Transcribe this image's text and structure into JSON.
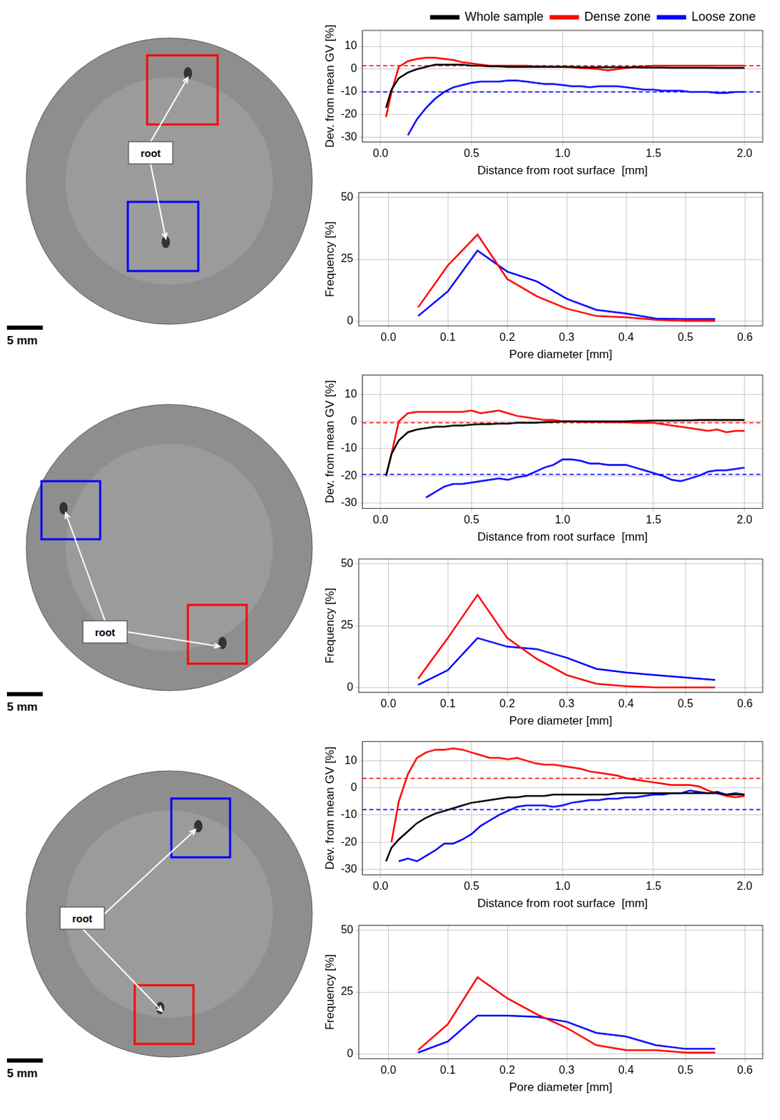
{
  "images": [
    {
      "label": "root",
      "scale_bar": "5 mm"
    },
    {
      "label": "root",
      "scale_bar": "5 mm"
    },
    {
      "label": "root",
      "scale_bar": "5 mm"
    }
  ],
  "chart_data": [
    {
      "type": "line",
      "xlabel": "Distance from root surface  [mm]",
      "ylabel": "Dev. from mean GV [%]",
      "xlim": [
        -0.1,
        2.1
      ],
      "ylim": [
        -32,
        17
      ],
      "xticks": [
        {
          "value": 0,
          "label": "0.0"
        },
        {
          "value": 0.5,
          "label": "0.5"
        },
        {
          "value": 1,
          "label": "1.0"
        },
        {
          "value": 1.5,
          "label": "1.5"
        },
        {
          "value": 2,
          "label": "2.0"
        }
      ],
      "yticks": [
        -30,
        -20,
        -10,
        0,
        10
      ],
      "grid": true,
      "legend": "top",
      "x": [
        0.03,
        0.06,
        0.1,
        0.15,
        0.2,
        0.25,
        0.3,
        0.35,
        0.4,
        0.45,
        0.5,
        0.55,
        0.6,
        0.65,
        0.7,
        0.75,
        0.8,
        0.85,
        0.9,
        0.95,
        1.0,
        1.05,
        1.1,
        1.15,
        1.2,
        1.25,
        1.3,
        1.35,
        1.4,
        1.45,
        1.5,
        1.55,
        1.6,
        1.65,
        1.7,
        1.75,
        1.8,
        1.85,
        1.9,
        1.95,
        2.0
      ],
      "series": [
        {
          "name": "Whole sample",
          "color": "#000000",
          "values": [
            -17,
            -9,
            -4,
            -1.5,
            0,
            1,
            2,
            2,
            2,
            2,
            1.5,
            1.5,
            1.2,
            1.2,
            1,
            1,
            1,
            1,
            1,
            1,
            1,
            1,
            0.8,
            0.8,
            0.8,
            0.8,
            0.8,
            0.8,
            0.8,
            0.7,
            0.7,
            0.7,
            0.6,
            0.6,
            0.6,
            0.6,
            0.6,
            0.5,
            0.5,
            0.5,
            0.5
          ]
        },
        {
          "name": "Dense zone",
          "color": "#ff0000",
          "values": [
            -21,
            -10,
            1,
            3.5,
            4.5,
            5,
            5,
            4.5,
            4,
            3,
            2.5,
            2,
            1.5,
            1.5,
            1.5,
            1.5,
            1.5,
            1.2,
            1.2,
            1,
            1,
            0.8,
            0.5,
            0.3,
            0,
            -0.5,
            0,
            0.5,
            1,
            1.2,
            1.5,
            1.5,
            1.5,
            1.5,
            1.5,
            1.5,
            1.5,
            1.5,
            1.5,
            1.5,
            1.5
          ]
        },
        {
          "name": "Loose zone",
          "color": "#0000ff",
          "values": [
            null,
            null,
            null,
            -29,
            -22,
            -17,
            -13,
            -10,
            -8,
            -7,
            -6,
            -5.5,
            -5.5,
            -5.5,
            -5,
            -5,
            -5.5,
            -6,
            -6.5,
            -6.5,
            -7,
            -7.5,
            -7.5,
            -8,
            -7.5,
            -7.5,
            -7.5,
            -8,
            -8.5,
            -9,
            -9,
            -9.5,
            -9.5,
            -9.5,
            -10,
            -10,
            -10,
            -10.5,
            -10.5,
            -10,
            -10
          ]
        }
      ],
      "reference_lines": [
        {
          "value": 1.5,
          "color": "#ff0000",
          "line_style": "dashed"
        },
        {
          "value": -10,
          "color": "#0000ff",
          "line_style": "dashed"
        }
      ]
    },
    {
      "type": "line",
      "xlabel": "Pore diameter [mm]",
      "ylabel": "Frequency [%]",
      "xlim": [
        -0.05,
        0.63
      ],
      "ylim": [
        -2,
        52
      ],
      "xticks": [
        {
          "value": 0,
          "label": "0.0"
        },
        {
          "value": 0.1,
          "label": "0.1"
        },
        {
          "value": 0.2,
          "label": "0.2"
        },
        {
          "value": 0.3,
          "label": "0.3"
        },
        {
          "value": 0.4,
          "label": "0.4"
        },
        {
          "value": 0.5,
          "label": "0.5"
        },
        {
          "value": 0.6,
          "label": "0.6"
        }
      ],
      "yticks": [
        0,
        25,
        50
      ],
      "grid": true,
      "x": [
        0.05,
        0.1,
        0.15,
        0.2,
        0.25,
        0.3,
        0.35,
        0.4,
        0.45,
        0.5,
        0.55
      ],
      "series": [
        {
          "name": "Dense zone",
          "color": "#ff0000",
          "values": [
            5.5,
            22.5,
            35,
            17,
            10,
            5,
            2,
            1.5,
            0.5,
            0,
            0
          ]
        },
        {
          "name": "Loose zone",
          "color": "#0000ff",
          "values": [
            2,
            12,
            28.5,
            20,
            16,
            9,
            4.5,
            3,
            1,
            0.8,
            0.8
          ]
        }
      ]
    },
    {
      "type": "line",
      "xlabel": "Distance from root surface  [mm]",
      "ylabel": "Dev. from mean GV [%]",
      "xlim": [
        -0.1,
        2.1
      ],
      "ylim": [
        -32,
        17
      ],
      "xticks": [
        {
          "value": 0,
          "label": "0.0"
        },
        {
          "value": 0.5,
          "label": "0.5"
        },
        {
          "value": 1,
          "label": "1.0"
        },
        {
          "value": 1.5,
          "label": "1.5"
        },
        {
          "value": 2,
          "label": "2.0"
        }
      ],
      "yticks": [
        -30,
        -20,
        -10,
        0,
        10
      ],
      "grid": true,
      "x": [
        0.03,
        0.06,
        0.1,
        0.15,
        0.2,
        0.25,
        0.3,
        0.35,
        0.4,
        0.45,
        0.5,
        0.55,
        0.6,
        0.65,
        0.7,
        0.75,
        0.8,
        0.85,
        0.9,
        0.95,
        1.0,
        1.05,
        1.1,
        1.15,
        1.2,
        1.25,
        1.3,
        1.35,
        1.4,
        1.45,
        1.5,
        1.55,
        1.6,
        1.65,
        1.7,
        1.75,
        1.8,
        1.85,
        1.9,
        1.95,
        2.0
      ],
      "series": [
        {
          "name": "Whole sample",
          "color": "#000000",
          "values": [
            -20,
            -12,
            -7,
            -4,
            -3,
            -2.5,
            -2,
            -2,
            -1.5,
            -1.5,
            -1.2,
            -1,
            -1,
            -0.8,
            -0.8,
            -0.5,
            -0.5,
            -0.5,
            -0.3,
            -0.2,
            0,
            0,
            0,
            0,
            0,
            0,
            0,
            0,
            0.2,
            0.2,
            0.3,
            0.3,
            0.3,
            0.4,
            0.4,
            0.5,
            0.5,
            0.5,
            0.5,
            0.5,
            0.5
          ]
        },
        {
          "name": "Dense zone",
          "color": "#ff0000",
          "values": [
            -20,
            -12,
            0,
            3,
            3.5,
            3.5,
            3.5,
            3.5,
            3.5,
            3.5,
            4,
            3,
            3.5,
            4,
            3,
            2,
            1.5,
            1,
            0.5,
            0.5,
            0,
            0,
            -0.2,
            -0.2,
            -0.2,
            -0.3,
            -0.3,
            -0.3,
            -0.5,
            -0.5,
            -0.5,
            -1,
            -1.5,
            -2,
            -2.5,
            -3,
            -3.5,
            -3,
            -4,
            -3.5,
            -3.5
          ]
        },
        {
          "name": "Loose zone",
          "color": "#0000ff",
          "values": [
            null,
            null,
            null,
            null,
            null,
            -28,
            -26,
            -24,
            -23,
            -23,
            -22.5,
            -22,
            -21.5,
            -21,
            -21.5,
            -20.5,
            -20,
            -18.5,
            -17,
            -16,
            -14,
            -14,
            -14.5,
            -15.5,
            -15.5,
            -16,
            -16,
            -16,
            -17,
            -18,
            -19,
            -20,
            -21.5,
            -22,
            -21,
            -20,
            -18.5,
            -18,
            -18,
            -17.5,
            -17
          ]
        }
      ],
      "reference_lines": [
        {
          "value": -0.5,
          "color": "#ff0000",
          "line_style": "dashed"
        },
        {
          "value": -19.5,
          "color": "#0000ff",
          "line_style": "dashed"
        }
      ]
    },
    {
      "type": "line",
      "xlabel": "Pore diameter [mm]",
      "ylabel": "Frequency [%]",
      "xlim": [
        -0.05,
        0.63
      ],
      "ylim": [
        -2,
        52
      ],
      "xticks": [
        {
          "value": 0,
          "label": "0.0"
        },
        {
          "value": 0.1,
          "label": "0.1"
        },
        {
          "value": 0.2,
          "label": "0.2"
        },
        {
          "value": 0.3,
          "label": "0.3"
        },
        {
          "value": 0.4,
          "label": "0.4"
        },
        {
          "value": 0.5,
          "label": "0.5"
        },
        {
          "value": 0.6,
          "label": "0.6"
        }
      ],
      "yticks": [
        0,
        25,
        50
      ],
      "grid": true,
      "x": [
        0.05,
        0.1,
        0.15,
        0.2,
        0.25,
        0.3,
        0.35,
        0.4,
        0.45,
        0.5,
        0.55
      ],
      "series": [
        {
          "name": "Dense zone",
          "color": "#ff0000",
          "values": [
            3.5,
            20,
            37.5,
            20,
            11.5,
            5,
            1.5,
            0.5,
            0,
            0,
            0
          ]
        },
        {
          "name": "Loose zone",
          "color": "#0000ff",
          "values": [
            1,
            7,
            20,
            16.5,
            15.5,
            12,
            7.5,
            6,
            5,
            4,
            3
          ]
        }
      ]
    },
    {
      "type": "line",
      "xlabel": "Distance from root surface  [mm]",
      "ylabel": "Dev. from mean GV [%]",
      "xlim": [
        -0.1,
        2.1
      ],
      "ylim": [
        -32,
        17
      ],
      "xticks": [
        {
          "value": 0,
          "label": "0.0"
        },
        {
          "value": 0.5,
          "label": "0.5"
        },
        {
          "value": 1,
          "label": "1.0"
        },
        {
          "value": 1.5,
          "label": "1.5"
        },
        {
          "value": 2,
          "label": "2.0"
        }
      ],
      "yticks": [
        -30,
        -20,
        -10,
        0,
        10
      ],
      "grid": true,
      "x": [
        0.03,
        0.06,
        0.1,
        0.15,
        0.2,
        0.25,
        0.3,
        0.35,
        0.4,
        0.45,
        0.5,
        0.55,
        0.6,
        0.65,
        0.7,
        0.75,
        0.8,
        0.85,
        0.9,
        0.95,
        1.0,
        1.05,
        1.1,
        1.15,
        1.2,
        1.25,
        1.3,
        1.35,
        1.4,
        1.45,
        1.5,
        1.55,
        1.6,
        1.65,
        1.7,
        1.75,
        1.8,
        1.85,
        1.9,
        1.95,
        2.0
      ],
      "series": [
        {
          "name": "Whole sample",
          "color": "#000000",
          "values": [
            -27,
            -22,
            -19,
            -16,
            -13,
            -11,
            -9.5,
            -8.5,
            -7.5,
            -6.5,
            -5.5,
            -5,
            -4.5,
            -4,
            -3.5,
            -3.5,
            -3,
            -3,
            -3,
            -2.5,
            -2.5,
            -2.5,
            -2.5,
            -2.5,
            -2.5,
            -2.5,
            -2,
            -2,
            -2,
            -2,
            -2,
            -2,
            -2,
            -2,
            -2,
            -2,
            -2,
            -2,
            -2.5,
            -2.5,
            -2.5
          ]
        },
        {
          "name": "Dense zone",
          "color": "#ff0000",
          "values": [
            null,
            -20,
            -5,
            5,
            11,
            13,
            14,
            14,
            14.5,
            14,
            13,
            12,
            11,
            11,
            10.5,
            11,
            10,
            9,
            8.5,
            8.5,
            8,
            7.5,
            7,
            6,
            5.5,
            5,
            4.5,
            3.5,
            3,
            2.5,
            2,
            1.5,
            1,
            1,
            1,
            0.5,
            -1,
            -2,
            -3,
            -3.5,
            -3
          ]
        },
        {
          "name": "Loose zone",
          "color": "#0000ff",
          "values": [
            null,
            null,
            -27,
            -26,
            -27,
            -25,
            -23,
            -20.5,
            -20.5,
            -19,
            -17,
            -14,
            -12,
            -10,
            -8.5,
            -7,
            -6.5,
            -6.5,
            -6.5,
            -7,
            -6.5,
            -5.5,
            -5,
            -4.5,
            -4.5,
            -4,
            -4,
            -3.5,
            -3.5,
            -3,
            -2.5,
            -2.5,
            -2,
            -2,
            -1,
            -1.5,
            -2,
            -1.5,
            -2.5,
            -2,
            -2.5
          ]
        }
      ],
      "reference_lines": [
        {
          "value": 3.5,
          "color": "#ff0000",
          "line_style": "dashed"
        },
        {
          "value": -8,
          "color": "#0000ff",
          "line_style": "dashed"
        }
      ]
    },
    {
      "type": "line",
      "xlabel": "Pore diameter [mm]",
      "ylabel": "Frequency [%]",
      "xlim": [
        -0.05,
        0.63
      ],
      "ylim": [
        -2,
        52
      ],
      "xticks": [
        {
          "value": 0,
          "label": "0.0"
        },
        {
          "value": 0.1,
          "label": "0.1"
        },
        {
          "value": 0.2,
          "label": "0.2"
        },
        {
          "value": 0.3,
          "label": "0.3"
        },
        {
          "value": 0.4,
          "label": "0.4"
        },
        {
          "value": 0.5,
          "label": "0.5"
        },
        {
          "value": 0.6,
          "label": "0.6"
        }
      ],
      "yticks": [
        0,
        25,
        50
      ],
      "grid": true,
      "x": [
        0.05,
        0.1,
        0.15,
        0.2,
        0.25,
        0.3,
        0.35,
        0.4,
        0.45,
        0.5,
        0.55
      ],
      "series": [
        {
          "name": "Dense zone",
          "color": "#ff0000",
          "values": [
            1.5,
            12,
            31,
            22.5,
            16,
            10.5,
            3.5,
            1.5,
            1.5,
            0.5,
            0.5
          ]
        },
        {
          "name": "Loose zone",
          "color": "#0000ff",
          "values": [
            0.5,
            5,
            15.5,
            15.5,
            15,
            13,
            8.5,
            7,
            3.5,
            2,
            2
          ]
        }
      ]
    }
  ]
}
